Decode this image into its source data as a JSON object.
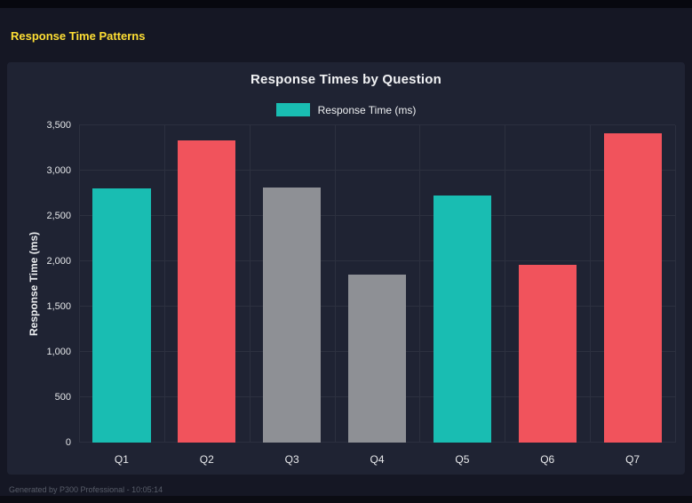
{
  "page": {
    "title": "Response Time Patterns",
    "footer": "Generated by P300 Professional - 10:05:14"
  },
  "chart_data": {
    "type": "bar",
    "title": "Response Times by Question",
    "legend": {
      "label": "Response Time (ms)",
      "color": "#19bdb2",
      "position": "top"
    },
    "categories": [
      "Q1",
      "Q2",
      "Q3",
      "Q4",
      "Q5",
      "Q6",
      "Q7"
    ],
    "values": [
      2800,
      3330,
      2810,
      1850,
      2730,
      1960,
      3410
    ],
    "bar_colors": [
      "#19bdb2",
      "#f1535c",
      "#8e9095",
      "#8e9095",
      "#19bdb2",
      "#f1535c",
      "#f1535c"
    ],
    "xlabel": "",
    "ylabel": "Response Time (ms)",
    "ylim": [
      0,
      3500
    ],
    "ytick_values": [
      0,
      500,
      1000,
      1500,
      2000,
      2500,
      3000,
      3500
    ],
    "ytick_labels": [
      "0",
      "500",
      "1,000",
      "1,500",
      "2,000",
      "2,500",
      "3,000",
      "3,500"
    ],
    "grid": true,
    "colors": {
      "page_background": "#151724",
      "panel_background": "#1f2333",
      "accent_yellow": "#ffdf34",
      "teal": "#19bdb2",
      "red": "#f1535c",
      "gray": "#8e9095",
      "gridline": "#2c303f"
    }
  }
}
